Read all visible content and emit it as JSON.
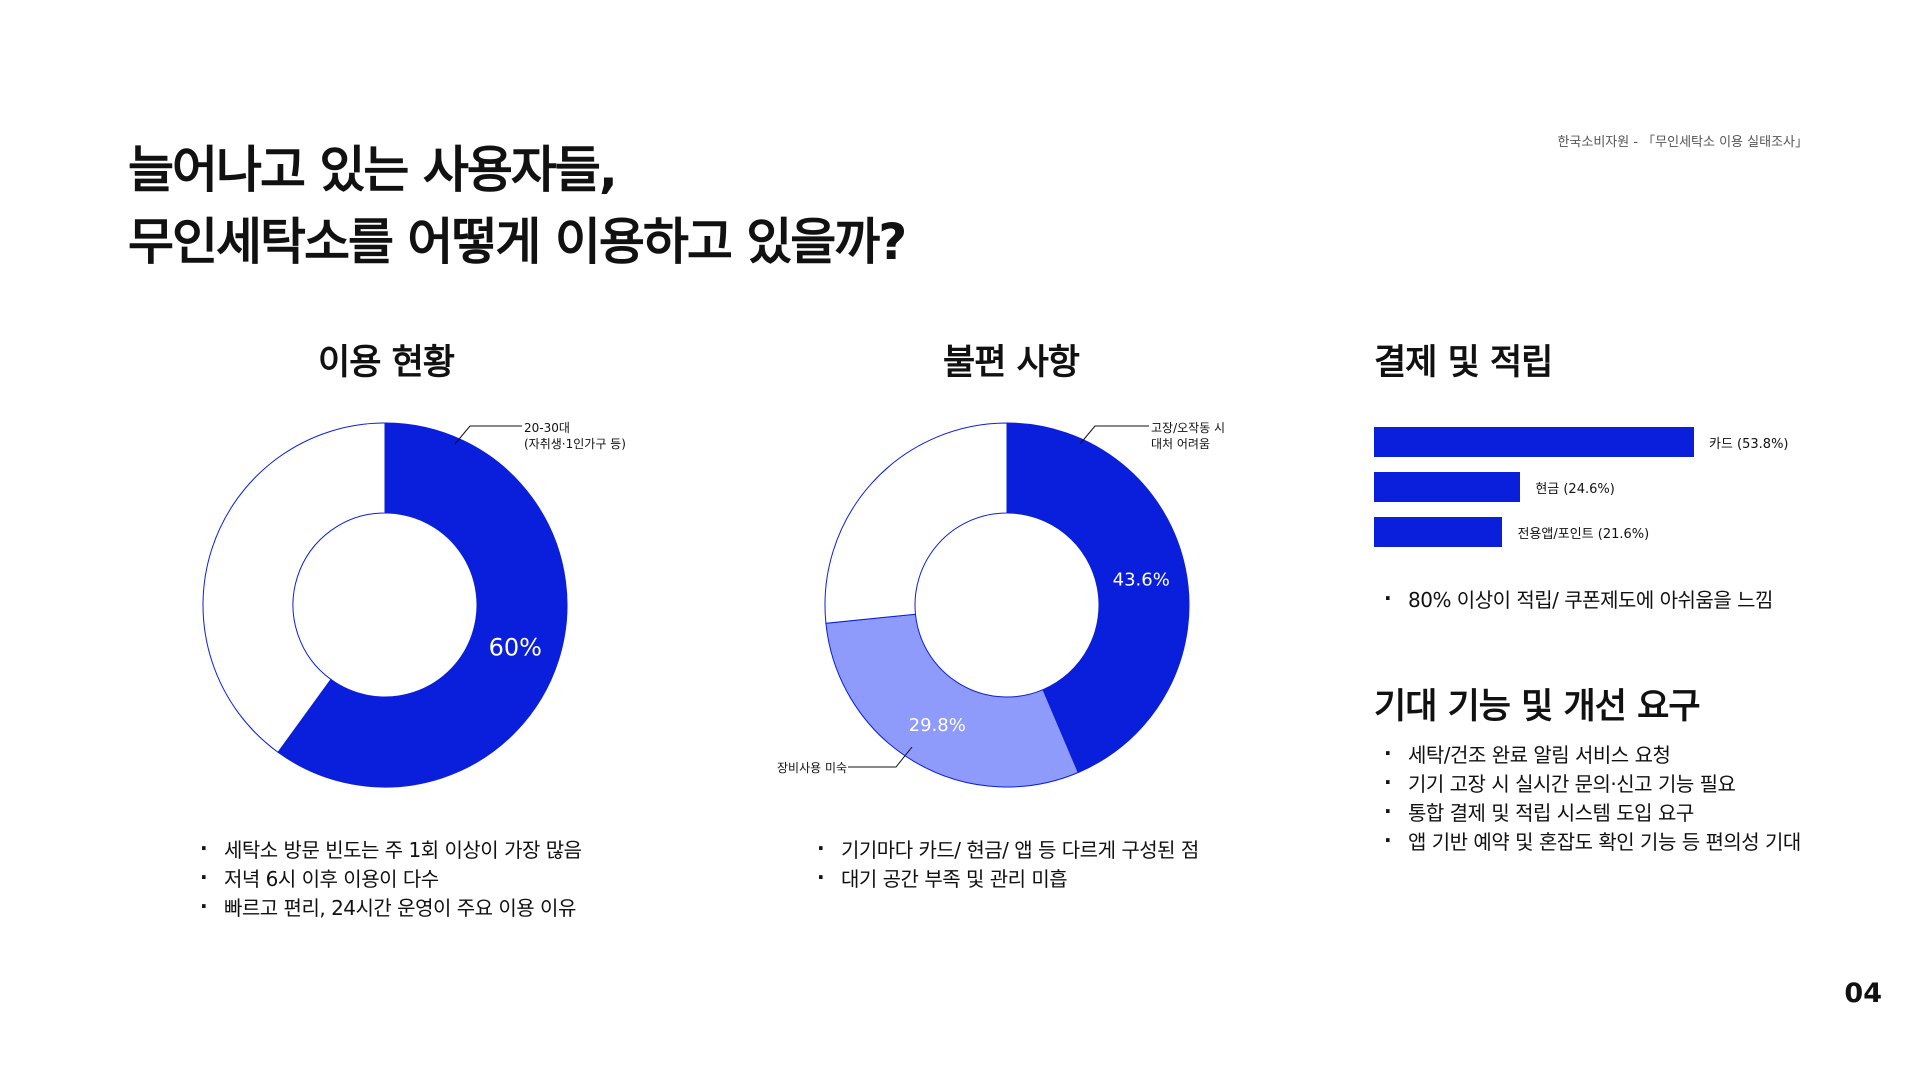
{
  "header": {
    "title_line1": "늘어나고 있는 사용자들,",
    "title_line2": "무인세탁소를 어떻게 이용하고 있을까?",
    "source": "한국소비자원 - 「무인세탁소 이용 실태조사」"
  },
  "colors": {
    "primary": "#0a1fdb",
    "secondary": "#8e9bfb",
    "empty": "#ffffff"
  },
  "sections": {
    "usage": {
      "title": "이용 현황",
      "callout_line1": "20-30대",
      "callout_line2": "(자취생·1인가구 등)",
      "bullets": [
        "세탁소 방문 빈도는 주 1회 이상이 가장 많음",
        "저녁 6시 이후 이용이 다수",
        "빠르고 편리, 24시간 운영이 주요 이용 이유"
      ]
    },
    "complaints": {
      "title": "불편 사항",
      "callout_top_line1": "고장/오작동 시",
      "callout_top_line2": "대처 어려움",
      "callout_left": "장비사용 미숙",
      "bullets": [
        "기기마다 카드/ 현금/  앱 등 다르게 구성된 점",
        "대기 공간 부족 및 관리 미흡"
      ]
    },
    "payment": {
      "title": "결제 및 적립",
      "bullets": [
        "80% 이상이 적립/ 쿠폰제도에 아쉬움을 느낌"
      ]
    },
    "expect": {
      "title": "기대 기능 및 개선 요구",
      "bullets": [
        "세탁/건조 완료 알림 서비스 요청",
        "기기 고장 시 실시간 문의·신고 기능 필요",
        "통합 결제 및 적립 시스템 도입 요구",
        "앱 기반 예약 및 혼잡도 확인 기능 등 편의성 기대"
      ]
    }
  },
  "chart_data": [
    {
      "type": "pie",
      "title": "이용 현황",
      "labels": [
        "20-30대 (자취생·1인가구 등)",
        ""
      ],
      "values": [
        60,
        40
      ],
      "value_labels": [
        "60%",
        ""
      ]
    },
    {
      "type": "pie",
      "title": "불편 사항",
      "labels": [
        "고장/오작동 시 대처 어려움",
        "장비사용 미숙",
        ""
      ],
      "values": [
        43.6,
        29.8,
        26.6
      ],
      "value_labels": [
        "43.6%",
        "29.8%",
        ""
      ]
    },
    {
      "type": "bar",
      "title": "결제 및 적립",
      "orientation": "horizontal",
      "categories": [
        "카드 (53.8%)",
        "현금 (24.6%)",
        "전용앱/포인트 (21.6%)"
      ],
      "values": [
        53.8,
        24.6,
        21.6
      ]
    }
  ],
  "page": {
    "number": "04"
  }
}
